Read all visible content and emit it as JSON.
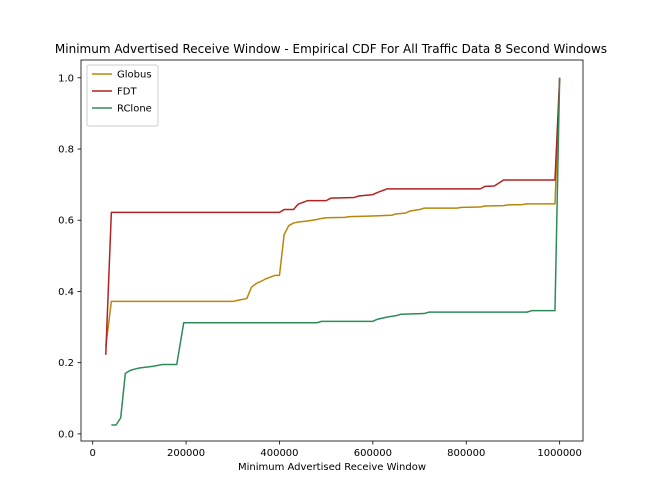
{
  "chart_data": {
    "type": "line",
    "title": "Minimum Advertised Receive Window - Empirical CDF For All Traffic Data 8 Second Windows",
    "xlabel": "Minimum Advertised Receive Window",
    "ylabel": "",
    "xlim": [
      -25000,
      1050000
    ],
    "ylim": [
      -0.02,
      1.05
    ],
    "xticks": [
      0,
      200000,
      400000,
      600000,
      800000,
      1000000
    ],
    "xtick_labels": [
      "0",
      "200000",
      "400000",
      "600000",
      "800000",
      "1000000"
    ],
    "yticks": [
      0.0,
      0.2,
      0.4,
      0.6,
      0.8,
      1.0
    ],
    "ytick_labels": [
      "0.0",
      "0.2",
      "0.4",
      "0.6",
      "0.8",
      "1.0"
    ],
    "grid": false,
    "legend_position": "upper-left",
    "series": [
      {
        "name": "Globus",
        "color": "#b8860b",
        "x": [
          28000,
          40000,
          300000,
          310000,
          330000,
          340000,
          350000,
          360000,
          370000,
          380000,
          390000,
          400000,
          410000,
          420000,
          430000,
          440000,
          460000,
          470000,
          480000,
          490000,
          500000,
          540000,
          550000,
          600000,
          640000,
          650000,
          670000,
          680000,
          700000,
          710000,
          780000,
          790000,
          830000,
          840000,
          880000,
          890000,
          920000,
          930000,
          990000,
          1000000
        ],
        "y": [
          0.245,
          0.372,
          0.372,
          0.375,
          0.38,
          0.412,
          0.422,
          0.428,
          0.435,
          0.44,
          0.445,
          0.445,
          0.56,
          0.585,
          0.592,
          0.595,
          0.598,
          0.6,
          0.602,
          0.605,
          0.607,
          0.608,
          0.61,
          0.612,
          0.614,
          0.618,
          0.62,
          0.626,
          0.63,
          0.634,
          0.634,
          0.636,
          0.637,
          0.64,
          0.641,
          0.643,
          0.644,
          0.646,
          0.646,
          1.0
        ]
      },
      {
        "name": "FDT",
        "color": "#b22222",
        "x": [
          28000,
          40000,
          400000,
          410000,
          430000,
          440000,
          460000,
          470000,
          500000,
          510000,
          560000,
          570000,
          600000,
          610000,
          630000,
          830000,
          840000,
          860000,
          880000,
          990000,
          1000000
        ],
        "y": [
          0.222,
          0.622,
          0.622,
          0.63,
          0.63,
          0.645,
          0.655,
          0.655,
          0.655,
          0.662,
          0.664,
          0.668,
          0.672,
          0.678,
          0.688,
          0.688,
          0.695,
          0.696,
          0.713,
          0.713,
          1.0
        ]
      },
      {
        "name": "RClone",
        "color": "#2e8b57",
        "x": [
          40000,
          50000,
          60000,
          70000,
          80000,
          90000,
          100000,
          130000,
          150000,
          180000,
          195000,
          480000,
          490000,
          600000,
          610000,
          630000,
          650000,
          660000,
          710000,
          720000,
          930000,
          940000,
          990000,
          1000000
        ],
        "y": [
          0.025,
          0.025,
          0.045,
          0.17,
          0.178,
          0.182,
          0.185,
          0.19,
          0.195,
          0.195,
          0.312,
          0.312,
          0.316,
          0.316,
          0.322,
          0.328,
          0.332,
          0.336,
          0.338,
          0.342,
          0.342,
          0.346,
          0.346,
          1.0
        ]
      }
    ]
  }
}
